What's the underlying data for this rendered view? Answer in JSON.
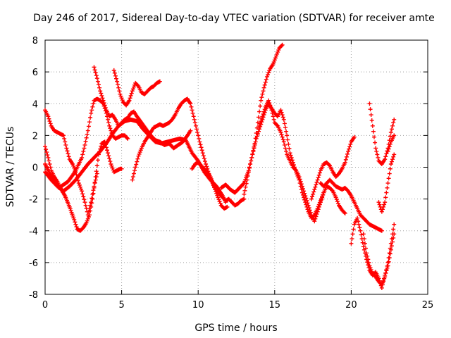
{
  "chart_data": {
    "type": "scatter",
    "title": "Day 246 of 2017, Sidereal Day-to-day VTEC variation (SDTVAR) for receiver amte",
    "xlabel": "GPS time / hours",
    "ylabel": "SDTVAR / TECUs",
    "xlim": [
      0,
      25
    ],
    "ylim": [
      -8,
      8
    ],
    "xticks": [
      0,
      5,
      10,
      15,
      20,
      25
    ],
    "yticks": [
      -8,
      -6,
      -4,
      -2,
      0,
      2,
      4,
      6,
      8
    ],
    "grid": true,
    "marker": "plus",
    "color": "#ff0000",
    "series": [
      {
        "name": "s1",
        "x": [
          0.0,
          0.2,
          0.4,
          0.6,
          0.8,
          1.0,
          1.2,
          1.4,
          1.6,
          1.8,
          2.0,
          2.2,
          2.4,
          2.6,
          2.8,
          3.0,
          3.2,
          3.4
        ],
        "y": [
          3.6,
          3.2,
          2.6,
          2.3,
          2.2,
          2.1,
          2.0,
          1.2,
          0.5,
          0.2,
          -0.3,
          -1.0,
          -1.5,
          -2.2,
          -3.0,
          -2.2,
          -1.2,
          -0.4
        ]
      },
      {
        "name": "s2",
        "x": [
          0.0,
          0.2,
          0.4,
          0.6,
          0.8,
          1.0,
          1.3,
          1.6,
          1.9,
          2.1,
          2.3,
          2.5,
          2.7,
          2.9,
          3.1,
          3.3,
          3.5,
          3.7,
          3.9,
          4.1,
          4.3,
          4.5,
          4.7,
          4.9,
          5.0
        ],
        "y": [
          1.3,
          0.6,
          -0.2,
          -0.6,
          -0.9,
          -1.3,
          -1.8,
          -2.5,
          -3.3,
          -3.9,
          -4.0,
          -3.8,
          -3.5,
          -3.0,
          -2.0,
          -0.6,
          0.8,
          1.5,
          1.6,
          0.9,
          0.2,
          -0.3,
          -0.2,
          -0.1,
          -0.1
        ]
      },
      {
        "name": "s3",
        "x": [
          0.0,
          0.3,
          0.6,
          0.9,
          1.2,
          1.5,
          1.8,
          2.0,
          2.2,
          2.4,
          2.6,
          2.8,
          3.0,
          3.2,
          3.4,
          3.6,
          3.8,
          4.0,
          4.2,
          4.4,
          4.6,
          4.8,
          5.0,
          5.2,
          5.4
        ],
        "y": [
          0.2,
          -0.4,
          -0.8,
          -1.3,
          -1.1,
          -0.9,
          -0.5,
          -0.2,
          0.2,
          0.6,
          1.4,
          2.3,
          3.4,
          4.2,
          4.3,
          4.2,
          4.0,
          3.4,
          2.6,
          2.0,
          1.8,
          1.9,
          2.0,
          2.0,
          1.8
        ]
      },
      {
        "name": "s4",
        "x": [
          0.0,
          0.4,
          0.8,
          1.2,
          1.6,
          2.0,
          2.4,
          2.8,
          3.2,
          3.6,
          4.0,
          4.4,
          4.8,
          5.2,
          5.6,
          6.0,
          6.4,
          6.8,
          7.2,
          7.6,
          8.0,
          8.4,
          8.8,
          9.2,
          9.6,
          10.0,
          10.4,
          10.8,
          11.2,
          11.6,
          11.8
        ],
        "y": [
          -0.3,
          -0.8,
          -1.2,
          -1.5,
          -1.2,
          -0.8,
          -0.3,
          0.2,
          0.6,
          1.0,
          1.5,
          2.1,
          2.6,
          2.9,
          3.0,
          2.9,
          2.4,
          2.0,
          1.6,
          1.5,
          1.6,
          1.7,
          1.8,
          1.7,
          0.9,
          0.4,
          -0.3,
          -0.8,
          -1.2,
          -1.8,
          -2.2
        ]
      },
      {
        "name": "s5",
        "x": [
          3.2,
          3.4,
          3.6,
          3.8,
          4.0,
          4.2,
          4.4,
          4.6,
          4.8,
          5.0,
          5.2,
          5.4,
          5.6,
          5.8,
          6.0,
          6.3,
          6.6,
          6.9,
          7.2,
          7.5,
          7.8,
          8.1,
          8.4,
          8.7,
          9.0,
          9.3,
          9.5
        ],
        "y": [
          6.3,
          5.6,
          4.8,
          4.2,
          3.6,
          3.2,
          3.3,
          3.0,
          2.6,
          2.8,
          3.0,
          3.1,
          3.4,
          3.5,
          3.2,
          2.8,
          2.4,
          2.0,
          1.7,
          1.6,
          1.4,
          1.5,
          1.2,
          1.4,
          1.6,
          2.0,
          2.3
        ]
      },
      {
        "name": "s6",
        "x": [
          4.5,
          4.7,
          4.9,
          5.1,
          5.3,
          5.5,
          5.7,
          5.9,
          6.1,
          6.3,
          6.5,
          6.7,
          6.9,
          7.1,
          7.3,
          7.5
        ],
        "y": [
          6.1,
          5.4,
          4.6,
          4.1,
          3.9,
          4.2,
          4.8,
          5.3,
          5.1,
          4.7,
          4.6,
          4.8,
          5.0,
          5.1,
          5.3,
          5.4
        ]
      },
      {
        "name": "s7",
        "x": [
          5.7,
          5.9,
          6.1,
          6.3,
          6.5,
          6.7,
          6.9,
          7.1,
          7.3,
          7.5,
          7.7,
          7.9,
          8.1,
          8.3,
          8.5,
          8.7,
          8.9,
          9.1,
          9.3,
          9.5,
          9.7,
          9.9,
          10.1,
          10.3,
          10.5,
          10.7,
          10.9,
          11.1,
          11.3,
          11.5,
          11.7,
          11.9
        ],
        "y": [
          -0.8,
          0.0,
          0.7,
          1.2,
          1.6,
          1.9,
          2.2,
          2.5,
          2.6,
          2.7,
          2.6,
          2.7,
          2.8,
          3.0,
          3.3,
          3.7,
          4.0,
          4.2,
          4.3,
          4.0,
          3.2,
          2.4,
          1.6,
          0.9,
          0.2,
          -0.4,
          -0.9,
          -1.4,
          -1.9,
          -2.4,
          -2.6,
          -2.5
        ]
      },
      {
        "name": "s8",
        "x": [
          9.6,
          9.8,
          10.0,
          10.2,
          10.4,
          10.6,
          10.8,
          11.0,
          11.2,
          11.4,
          11.6,
          11.8,
          12.0,
          12.2,
          12.4,
          12.6,
          12.8,
          13.0
        ],
        "y": [
          -0.1,
          0.2,
          0.3,
          0.1,
          -0.1,
          -0.3,
          -0.6,
          -1.1,
          -1.5,
          -1.7,
          -1.9,
          -2.1,
          -2.0,
          -2.2,
          -2.4,
          -2.3,
          -2.1,
          -2.0
        ]
      },
      {
        "name": "s9",
        "x": [
          11.5,
          11.8,
          12.1,
          12.4,
          12.7,
          13.0,
          13.3,
          13.5,
          13.7,
          13.9,
          14.1,
          14.3,
          14.5,
          14.7,
          14.9,
          15.1,
          15.3,
          15.5
        ],
        "y": [
          -1.3,
          -1.1,
          -1.4,
          -1.6,
          -1.3,
          -1.0,
          -0.2,
          0.6,
          1.5,
          2.8,
          4.2,
          5.0,
          5.7,
          6.2,
          6.5,
          7.0,
          7.5,
          7.7
        ]
      },
      {
        "name": "s10",
        "x": [
          13.0,
          13.2,
          13.4,
          13.6,
          13.8,
          14.0,
          14.2,
          14.4,
          14.6,
          14.8,
          15.0,
          15.2,
          15.4,
          15.6,
          15.8,
          16.0,
          16.2,
          16.4,
          16.6,
          16.8,
          17.0,
          17.2,
          17.4,
          17.6,
          17.8,
          18.0,
          18.2
        ],
        "y": [
          -1.7,
          -0.8,
          0.2,
          1.0,
          1.8,
          2.4,
          3.0,
          3.6,
          4.0,
          3.7,
          3.4,
          3.2,
          3.6,
          3.0,
          2.0,
          0.9,
          0.3,
          -0.3,
          -0.8,
          -1.6,
          -2.2,
          -2.8,
          -3.2,
          -3.0,
          -2.6,
          -2.1,
          -1.6
        ]
      },
      {
        "name": "s11",
        "x": [
          14.0,
          14.2,
          14.4,
          14.6,
          14.8,
          15.0,
          15.2,
          15.4,
          15.6,
          15.8,
          16.0,
          16.2,
          16.4,
          16.6,
          16.8,
          17.0,
          17.2,
          17.4,
          17.6,
          17.8,
          18.0,
          18.2,
          18.4,
          18.6,
          18.8,
          19.0,
          19.2,
          19.4,
          19.6
        ],
        "y": [
          2.6,
          3.2,
          3.8,
          4.2,
          3.6,
          2.8,
          2.6,
          2.2,
          1.6,
          0.8,
          0.4,
          0.0,
          -0.2,
          -0.6,
          -1.2,
          -1.8,
          -2.4,
          -3.0,
          -3.4,
          -2.8,
          -2.2,
          -1.6,
          -1.2,
          -1.3,
          -1.5,
          -1.9,
          -2.4,
          -2.7,
          -2.9
        ]
      },
      {
        "name": "s12",
        "x": [
          17.4,
          17.6,
          17.8,
          18.0,
          18.2,
          18.4,
          18.6,
          18.8,
          19.0,
          19.2,
          19.4,
          19.6,
          19.8,
          20.0,
          20.2
        ],
        "y": [
          -2.0,
          -1.4,
          -0.8,
          -0.2,
          0.2,
          0.3,
          0.1,
          -0.3,
          -0.6,
          -0.4,
          -0.1,
          0.3,
          1.0,
          1.6,
          1.9
        ]
      },
      {
        "name": "s13",
        "x": [
          18.0,
          18.2,
          18.4,
          18.6,
          18.8,
          19.0,
          19.2,
          19.4,
          19.6,
          19.8,
          20.0,
          20.2,
          20.4,
          20.6,
          20.8,
          21.0,
          21.2,
          21.4,
          21.6,
          21.8,
          22.0
        ],
        "y": [
          -1.0,
          -1.2,
          -1.0,
          -0.8,
          -1.0,
          -1.2,
          -1.3,
          -1.4,
          -1.3,
          -1.5,
          -1.8,
          -2.2,
          -2.6,
          -3.0,
          -3.2,
          -3.4,
          -3.6,
          -3.7,
          -3.8,
          -3.9,
          -4.0
        ]
      },
      {
        "name": "s14",
        "x": [
          20.0,
          20.2,
          20.4,
          20.6,
          20.8,
          21.0,
          21.2,
          21.4,
          21.6,
          21.8,
          22.0,
          22.2,
          22.4,
          22.6,
          22.8
        ],
        "y": [
          -4.8,
          -3.6,
          -3.2,
          -4.0,
          -5.0,
          -5.8,
          -6.5,
          -6.8,
          -6.6,
          -7.0,
          -7.6,
          -6.8,
          -6.2,
          -5.2,
          -4.2
        ]
      },
      {
        "name": "s15",
        "x": [
          20.8,
          21.0,
          21.2,
          21.4,
          21.6,
          21.8,
          22.0,
          22.2,
          22.4,
          22.6,
          22.8
        ],
        "y": [
          -4.2,
          -5.4,
          -6.2,
          -6.7,
          -6.9,
          -7.2,
          -7.4,
          -6.9,
          -6.0,
          -4.8,
          -3.6
        ]
      },
      {
        "name": "s16",
        "x": [
          21.2,
          21.4,
          21.6,
          21.8,
          22.0,
          22.2,
          22.4,
          22.6,
          22.8
        ],
        "y": [
          4.0,
          2.6,
          1.2,
          0.4,
          0.2,
          0.5,
          1.2,
          2.2,
          3.0
        ]
      },
      {
        "name": "s17",
        "x": [
          21.8,
          22.0,
          22.2,
          22.4,
          22.6,
          22.8
        ],
        "y": [
          -2.2,
          -2.8,
          -2.2,
          -1.0,
          0.2,
          0.8
        ]
      },
      {
        "name": "s18",
        "x": [
          22.4,
          22.6,
          22.8
        ],
        "y": [
          1.0,
          1.6,
          2.0
        ]
      }
    ]
  }
}
